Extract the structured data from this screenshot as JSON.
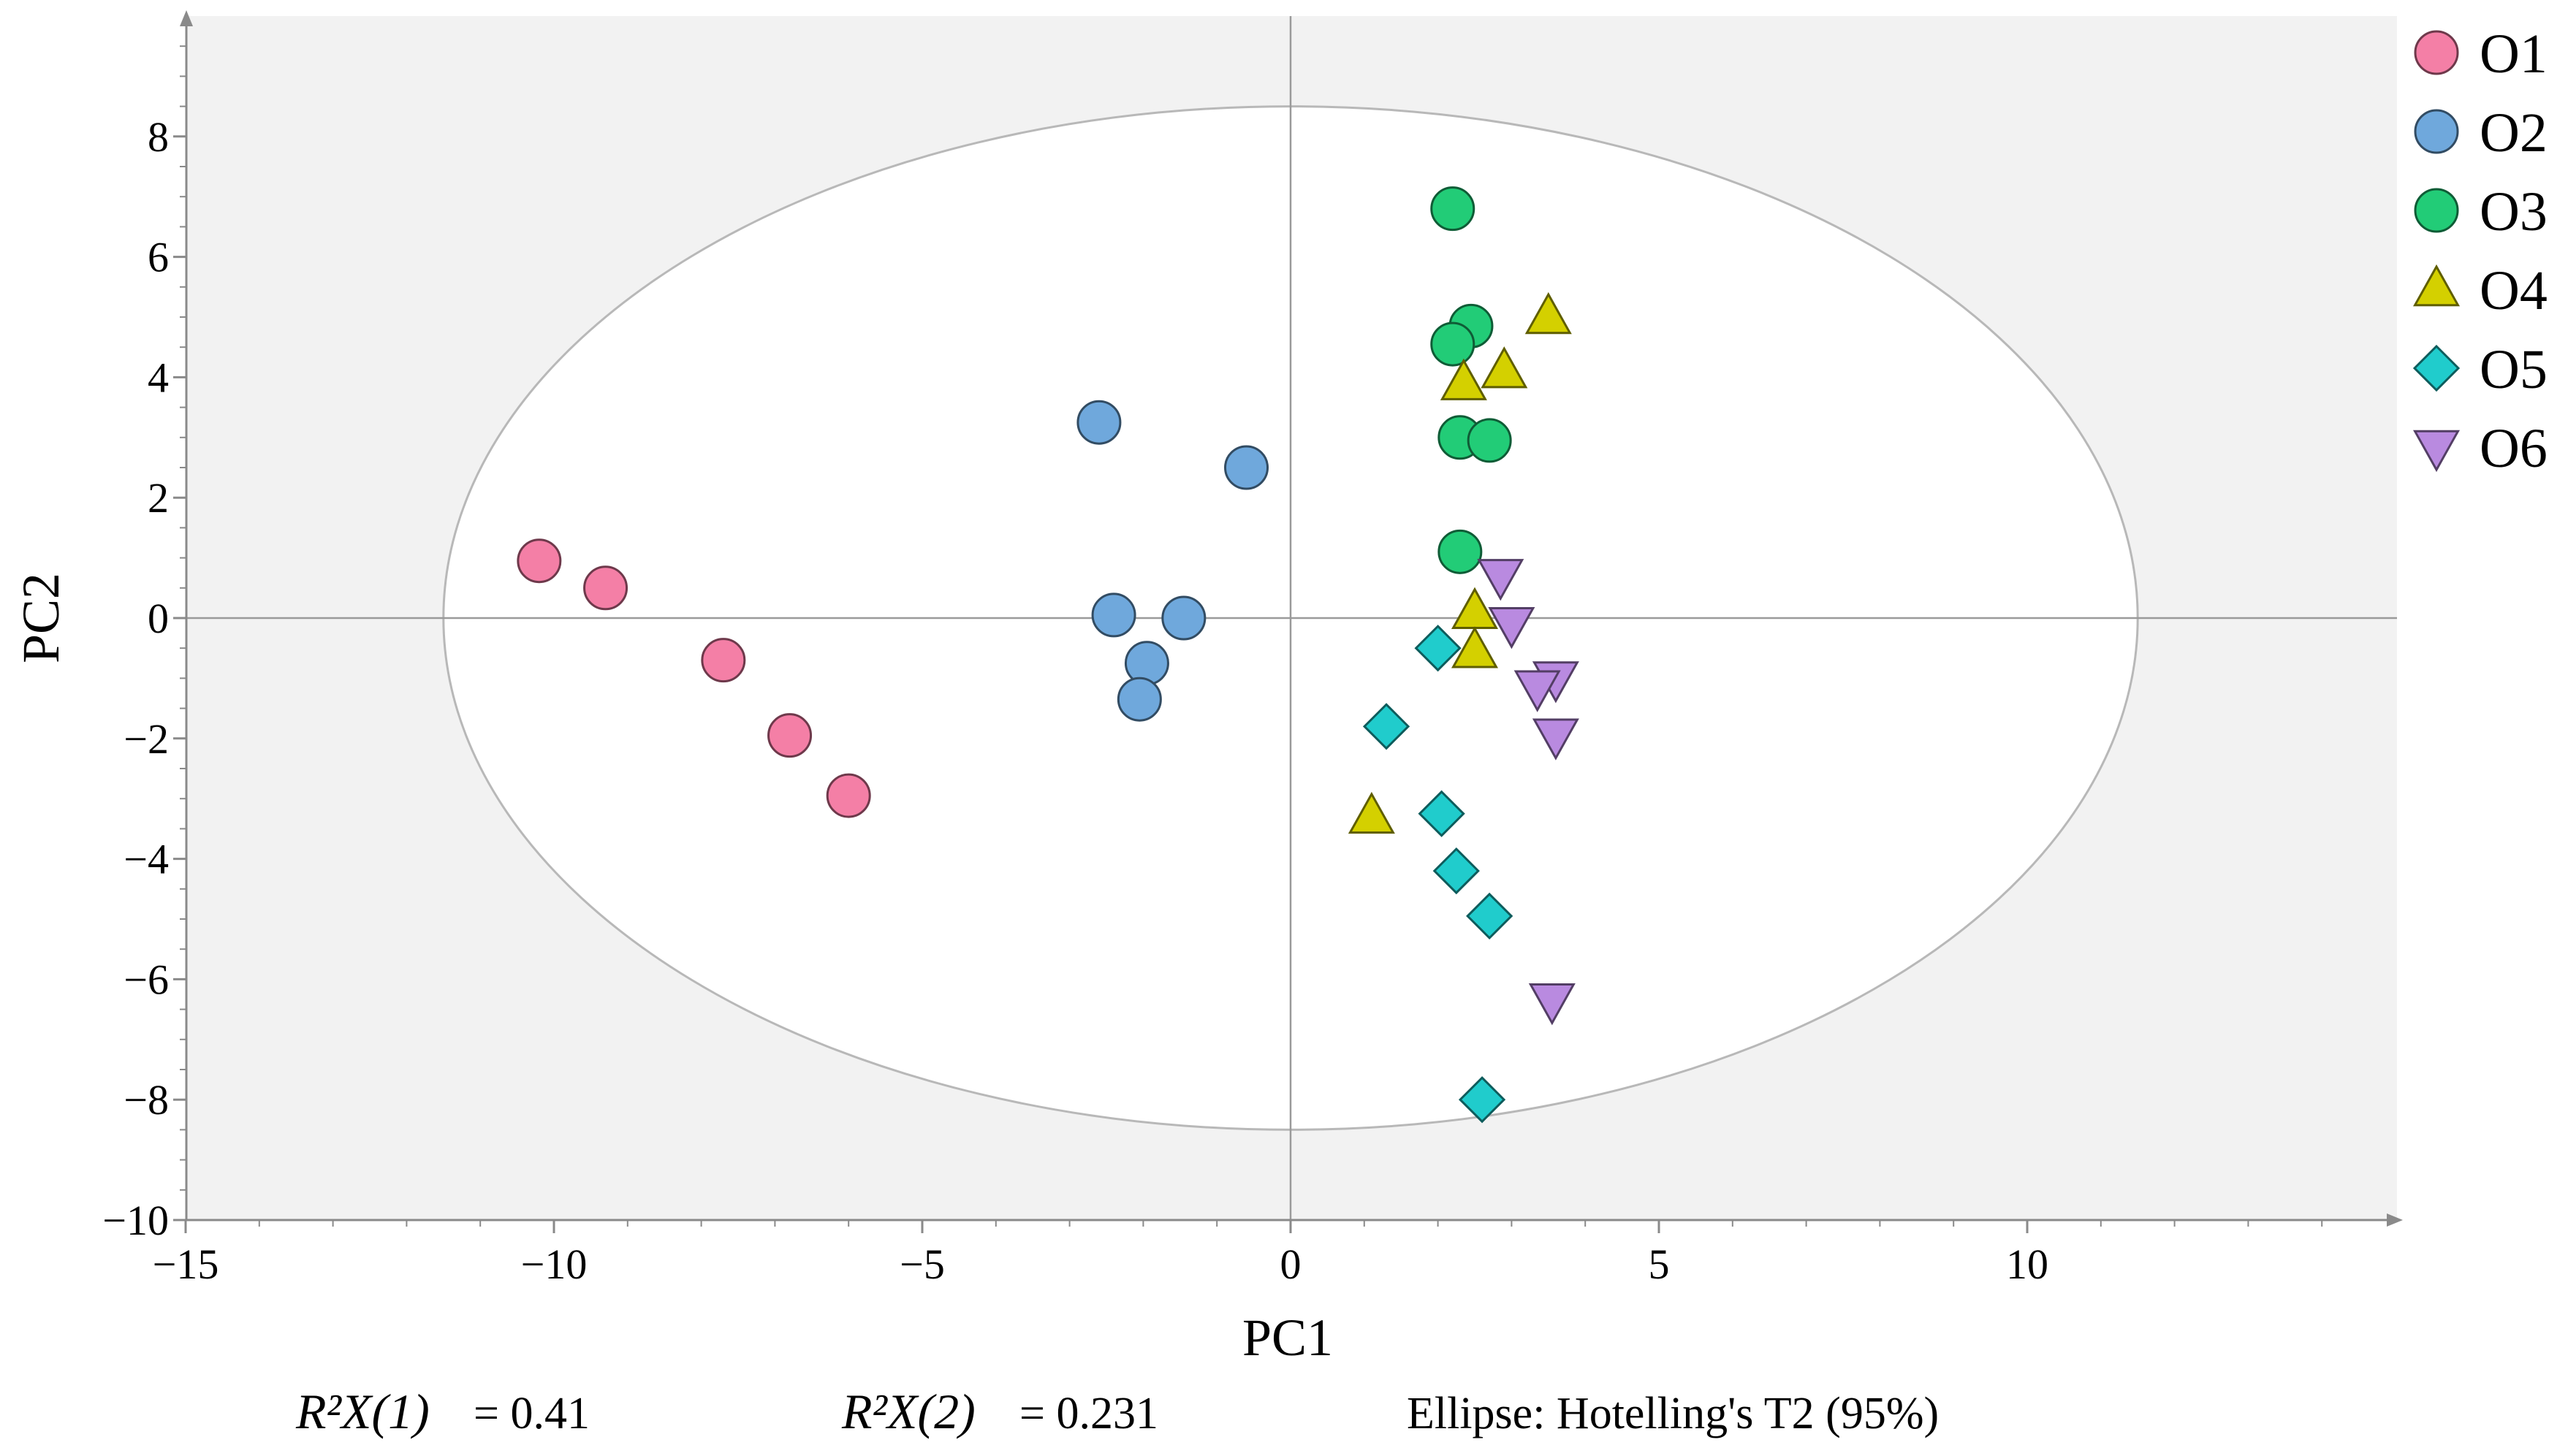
{
  "chart_data": {
    "type": "scatter",
    "xlabel": "PC1",
    "ylabel": "PC2",
    "xlim": [
      -15,
      15
    ],
    "ylim": [
      -10,
      10
    ],
    "xticks": [
      -15,
      -10,
      -5,
      0,
      5,
      10
    ],
    "yticks": [
      -10,
      -8,
      -6,
      -4,
      -2,
      0,
      2,
      4,
      6,
      8
    ],
    "xtick_labels": [
      "−15",
      "−10",
      "−5",
      "0",
      "5",
      "10"
    ],
    "ytick_labels": [
      "−10",
      "−8",
      "−6",
      "−4",
      "−2",
      "0",
      "2",
      "4",
      "6",
      "8"
    ],
    "ellipse": {
      "label": "Hotelling's T2 (95%)",
      "rx": 11.5,
      "ry": 8.5
    },
    "legend_position": "right",
    "series": [
      {
        "name": "O1",
        "marker": "circle",
        "color": "#f47fa6",
        "points": [
          [
            -10.2,
            0.95
          ],
          [
            -9.3,
            0.5
          ],
          [
            -7.7,
            -0.7
          ],
          [
            -6.8,
            -1.95
          ],
          [
            -6.0,
            -2.95
          ]
        ]
      },
      {
        "name": "O2",
        "marker": "circle",
        "color": "#6fa8dc",
        "points": [
          [
            -2.6,
            3.25
          ],
          [
            -0.6,
            2.5
          ],
          [
            -2.4,
            0.05
          ],
          [
            -1.45,
            0.0
          ],
          [
            -1.95,
            -0.75
          ],
          [
            -2.05,
            -1.35
          ]
        ]
      },
      {
        "name": "O3",
        "marker": "circle",
        "color": "#22cc77",
        "points": [
          [
            2.2,
            6.8
          ],
          [
            2.45,
            4.85
          ],
          [
            2.2,
            4.55
          ],
          [
            2.3,
            3.0
          ],
          [
            2.7,
            2.95
          ],
          [
            2.3,
            1.1
          ]
        ]
      },
      {
        "name": "O4",
        "marker": "triangle-up",
        "color": "#d4d000",
        "points": [
          [
            3.5,
            5.0
          ],
          [
            2.9,
            4.1
          ],
          [
            2.35,
            3.9
          ],
          [
            2.5,
            0.1
          ],
          [
            2.5,
            -0.55
          ],
          [
            1.1,
            -3.3
          ]
        ]
      },
      {
        "name": "O5",
        "marker": "diamond",
        "color": "#20cccc",
        "points": [
          [
            2.0,
            -0.5
          ],
          [
            1.3,
            -1.8
          ],
          [
            2.05,
            -3.25
          ],
          [
            2.25,
            -4.2
          ],
          [
            2.7,
            -4.95
          ],
          [
            2.6,
            -8.0
          ]
        ]
      },
      {
        "name": "O6",
        "marker": "triangle-down",
        "color": "#b98ae0",
        "points": [
          [
            2.85,
            0.7
          ],
          [
            3.0,
            -0.1
          ],
          [
            3.6,
            -1.0
          ],
          [
            3.35,
            -1.15
          ],
          [
            3.6,
            -1.95
          ],
          [
            3.55,
            -6.35
          ]
        ]
      }
    ]
  },
  "footer": {
    "r2x1_label": "R²X(1)",
    "r2x1_value": "= 0.41",
    "r2x2_label": "R²X(2)",
    "r2x2_value": "= 0.231",
    "ellipse_note": "Ellipse: Hotelling's T2 (95%)"
  }
}
